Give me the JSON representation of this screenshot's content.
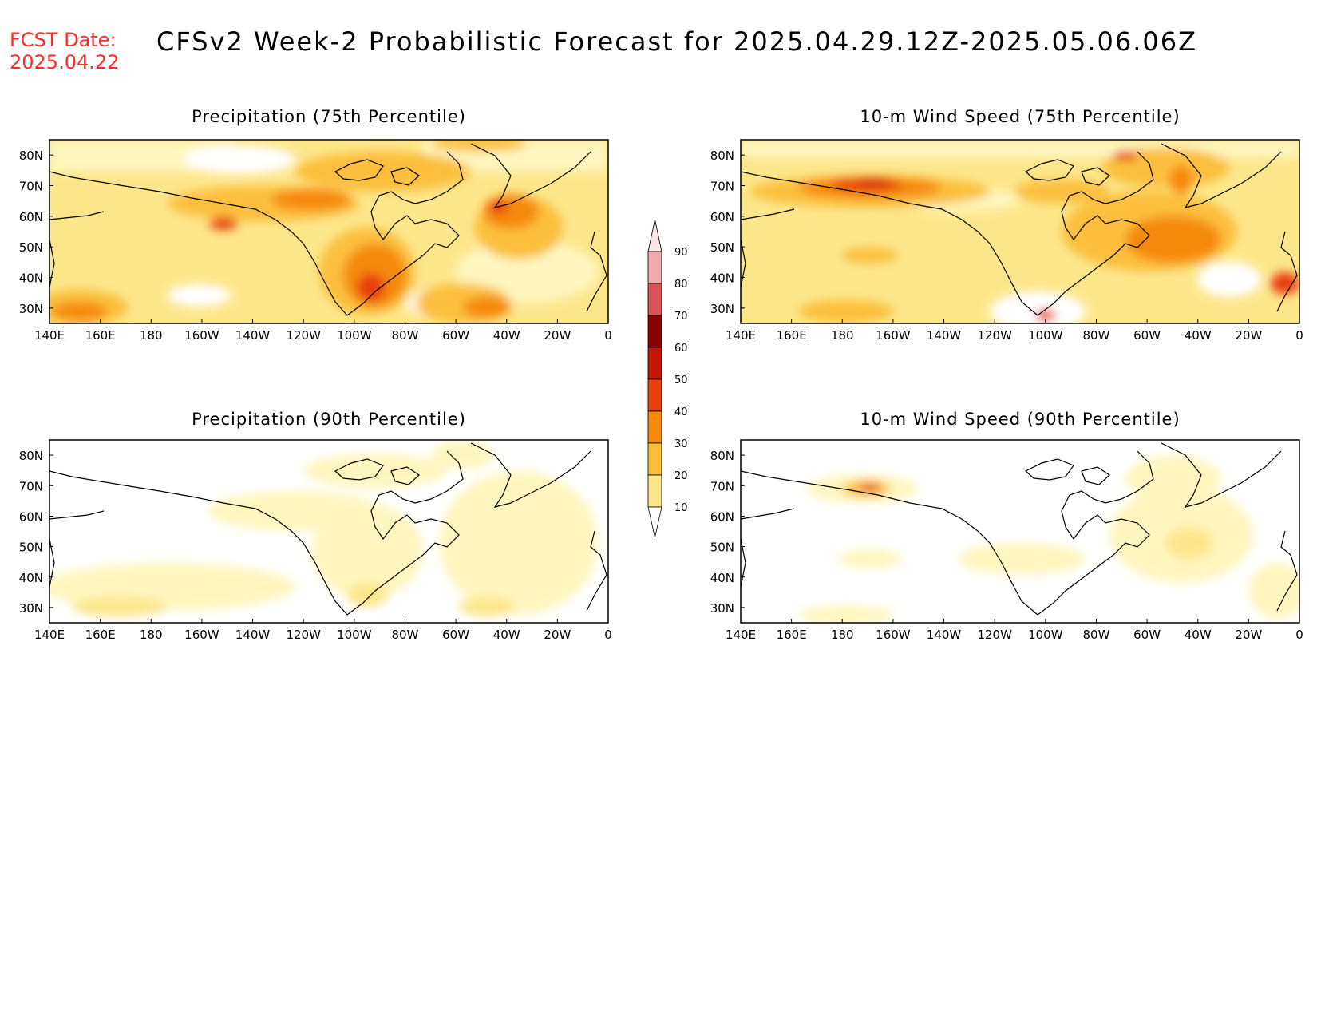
{
  "header": {
    "fcst_label": "FCST Date:",
    "fcst_date": "2025.04.22",
    "title": "CFSv2 Week-2 Probabilistic Forecast for 2025.04.29.12Z-2025.05.06.06Z"
  },
  "axes": {
    "x_ticks": [
      "140E",
      "160E",
      "180",
      "160W",
      "140W",
      "120W",
      "100W",
      "80W",
      "60W",
      "40W",
      "20W",
      "0"
    ],
    "y_ticks": [
      "80N",
      "70N",
      "60N",
      "50N",
      "40N",
      "30N"
    ]
  },
  "panels": [
    {
      "id": "precip-75",
      "title": "Precipitation (75th Percentile)"
    },
    {
      "id": "wind-75",
      "title": "10-m Wind Speed (75th Percentile)"
    },
    {
      "id": "precip-90",
      "title": "Precipitation (90th Percentile)"
    },
    {
      "id": "wind-90",
      "title": "10-m Wind Speed (90th Percentile)"
    }
  ],
  "colorbar": {
    "levels": [
      "10",
      "20",
      "30",
      "40",
      "50",
      "60",
      "70",
      "80",
      "90"
    ],
    "colors": [
      "#fff6bf",
      "#fde68a",
      "#fbbf3c",
      "#f58a0b",
      "#e8410c",
      "#c41505",
      "#8b0000",
      "#d9535a",
      "#f1a8ae",
      "#fde4e6"
    ]
  },
  "chart_data": {
    "type": "heatmap",
    "x_range": [
      "140E",
      "0"
    ],
    "y_range": [
      "25N",
      "85N"
    ],
    "panels": [
      "Precipitation (75th Percentile)",
      "10-m Wind Speed (75th Percentile)",
      "Precipitation (90th Percentile)",
      "10-m Wind Speed (90th Percentile)"
    ],
    "legend_placement": "center-between-columns"
  }
}
